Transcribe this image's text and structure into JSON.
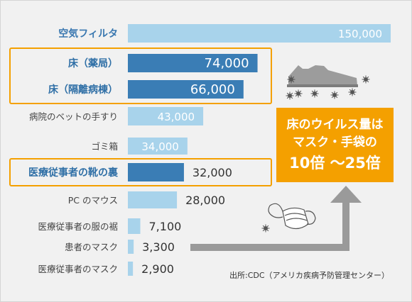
{
  "chart_data": {
    "type": "bar",
    "orientation": "horizontal",
    "categories": [
      "空気フィルタ",
      "床（薬局）",
      "床（隔離病棟）",
      "病院のベットの手すり",
      "ゴミ箱",
      "医療従事者の靴の裏",
      "PC のマウス",
      "医療従事者の服の裾",
      "患者のマスク",
      "医療従事者のマスク"
    ],
    "values": [
      150000,
      74000,
      66000,
      43000,
      34000,
      32000,
      28000,
      7100,
      3300,
      2900
    ],
    "value_labels": [
      "150,000",
      "74,000",
      "66,000",
      "43,000",
      "34,000",
      "32,000",
      "28,000",
      "7,100",
      "3,300",
      "2,900"
    ],
    "highlighted": [
      "床（薬局）",
      "床（隔離病棟）",
      "医療従事者の靴の裏"
    ],
    "xlim": [
      0,
      150000
    ],
    "grid": false,
    "colors": {
      "bar": "#a8d3eb",
      "bar_highlight": "#3a7db5",
      "highlight_border": "#f4a000",
      "callout": "#f4a000",
      "arrow": "#9a9a9a"
    },
    "annotations": {
      "callout_line1": "床のウイルス量は",
      "callout_line2": "マスク・手袋の",
      "callout_line3": "10倍 ～25倍",
      "source": "出所:CDC（アメリカ疾病予防管理センター）"
    },
    "icons": [
      "shoe-icon",
      "virus-icon",
      "mask-icon"
    ]
  }
}
